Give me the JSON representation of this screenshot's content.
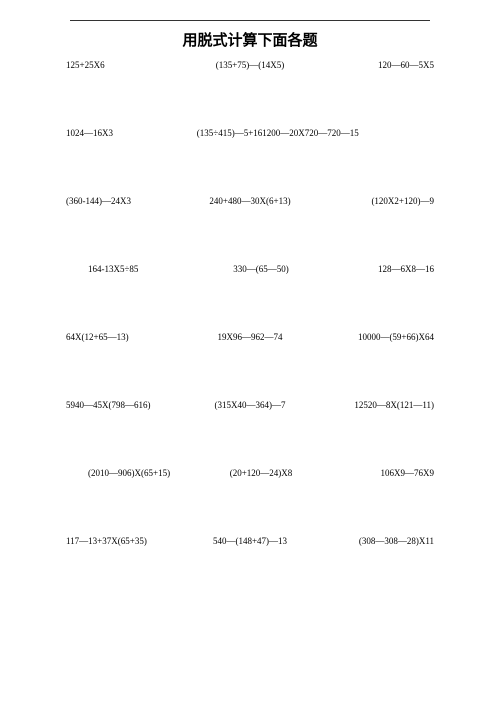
{
  "title": "用脱式计算下面各题",
  "rows": [
    {
      "type": "3",
      "c1": "125+25X6",
      "c2": "(135+75)―(14X5)",
      "c3": "120―60―5X5"
    },
    {
      "type": "2",
      "ca": "1024―16X3",
      "cb": "(135÷415)―5+161200―20X720―720―15"
    },
    {
      "type": "3",
      "c1": "(360-144)―24X3",
      "c2": "240+480―30X(6+13)",
      "c3": "(120X2+120)―9"
    },
    {
      "type": "3i",
      "c1": "164-13X5÷85",
      "c2": "330―(65―50)",
      "c3": "128―6X8―16"
    },
    {
      "type": "3",
      "c1": "64X(12+65―13)",
      "c2": "19X96―962―74",
      "c3": "10000―(59+66)X64"
    },
    {
      "type": "3",
      "c1": "5940―45X(798―616)",
      "c2": "(315X40―364)―7",
      "c3": "12520―8X(121―11)"
    },
    {
      "type": "3i",
      "c1": "(2010―906)X(65+15)",
      "c2": "(20+120―24)X8",
      "c3": "106X9―76X9"
    },
    {
      "type": "3",
      "c1": "117―13+37X(65+35)",
      "c2": "540―(148+47)―13",
      "c3": "(308―308―28)X11"
    }
  ]
}
